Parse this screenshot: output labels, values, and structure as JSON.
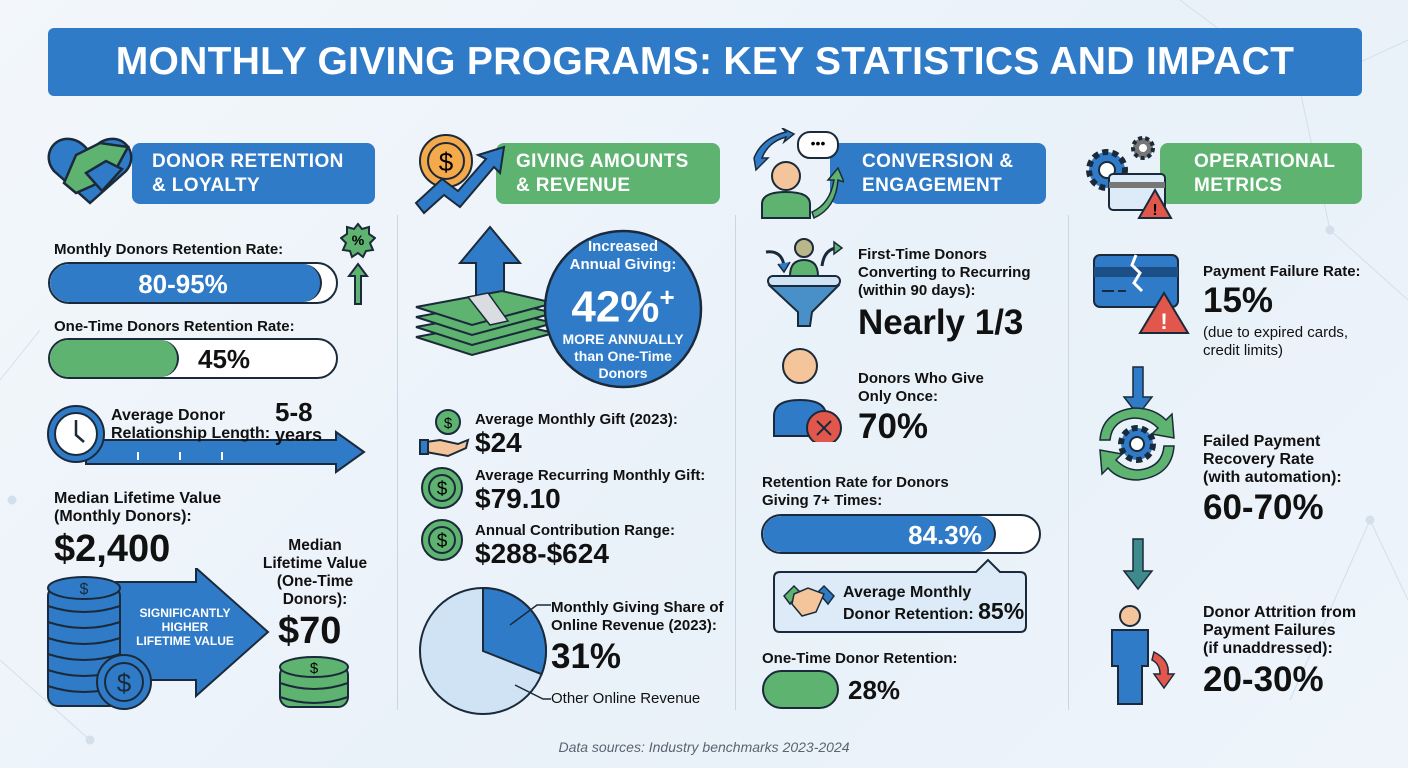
{
  "title": "MONTHLY GIVING PROGRAMS: KEY STATISTICS AND IMPACT",
  "colors": {
    "blue": "#2f7bc8",
    "green": "#5db36f",
    "red": "#e2574c",
    "orange": "#f4a94a"
  },
  "sections": {
    "retention": {
      "header_line1": "DONOR RETENTION",
      "header_line2": "& LOYALTY",
      "icon": "heart-handshake-icon",
      "monthly_label": "Monthly Donors Retention Rate:",
      "monthly_value": "80-95%",
      "monthly_fill_percent": 95,
      "onetime_label": "One-Time Donors Retention Rate:",
      "onetime_value": "45%",
      "onetime_fill_percent": 45,
      "relationship_label_1": "Average Donor",
      "relationship_label_2": "Relationship Length:",
      "relationship_value": "5-8",
      "relationship_unit": "years",
      "ltv_monthly_label_1": "Median Lifetime Value",
      "ltv_monthly_label_2": "(Monthly Donors):",
      "ltv_monthly_value": "$2,400",
      "arrow_text_1": "SIGNIFICANTLY",
      "arrow_text_2": "HIGHER",
      "arrow_text_3": "LIFETIME VALUE",
      "ltv_onetime_label_1": "Median",
      "ltv_onetime_label_2": "Lifetime Value",
      "ltv_onetime_label_3": "(One-Time",
      "ltv_onetime_label_4": "Donors):",
      "ltv_onetime_value": "$70"
    },
    "giving": {
      "header_line1": "GIVING AMOUNTS",
      "header_line2": "& REVENUE",
      "icon": "coin-growth-icon",
      "circle_line1": "Increased",
      "circle_line2": "Annual Giving:",
      "circle_value": "42%",
      "circle_plus": "+",
      "circle_line3": "MORE ANNUALLY",
      "circle_line4": "than One-Time",
      "circle_line5": "Donors",
      "items": [
        {
          "label": "Average Monthly Gift (2023):",
          "value": "$24",
          "icon": "hand-coin-icon"
        },
        {
          "label": "Average Recurring Monthly Gift:",
          "value": "$79.10",
          "icon": "dollar-coin-icon"
        },
        {
          "label": "Annual Contribution Range:",
          "value": "$288-$624",
          "icon": "dollar-coin-icon"
        }
      ],
      "pie_label_1": "Monthly Giving Share of",
      "pie_label_2": "Online Revenue (2023):",
      "pie_value": "31%",
      "pie_share_percent": 31,
      "pie_other_label": "Other Online Revenue"
    },
    "conversion": {
      "header_line1": "CONVERSION &",
      "header_line2": "ENGAGEMENT",
      "icon": "person-cycle-icon",
      "first_label_1": "First-Time Donors",
      "first_label_2": "Converting to Recurring",
      "first_label_3": "(within 90 days):",
      "first_value": "Nearly 1/3",
      "once_label_1": "Donors Who Give",
      "once_label_2": "Only Once:",
      "once_value": "70%",
      "seven_label_1": "Retention Rate for Donors",
      "seven_label_2": "Giving 7+ Times:",
      "seven_value": "84.3%",
      "seven_fill_percent": 84.3,
      "callout_label_1": "Average Monthly",
      "callout_label_2": "Donor Retention:",
      "callout_value": "85%",
      "onetime_label": "One-Time Donor Retention:",
      "onetime_value": "28%",
      "onetime_fill_percent": 28
    },
    "operational": {
      "header_line1": "OPERATIONAL",
      "header_line2": "METRICS",
      "icon": "gear-card-warning-icon",
      "failure_label": "Payment Failure Rate:",
      "failure_value": "15%",
      "failure_note_1": "(due to expired cards,",
      "failure_note_2": "credit limits)",
      "recovery_label_1": "Failed Payment",
      "recovery_label_2": "Recovery Rate",
      "recovery_label_3": "(with automation):",
      "recovery_value": "60-70%",
      "attrition_label_1": "Donor Attrition from",
      "attrition_label_2": "Payment Failures",
      "attrition_label_3": "(if unaddressed):",
      "attrition_value": "20-30%"
    }
  },
  "footer": "Data sources: Industry benchmarks 2023-2024"
}
